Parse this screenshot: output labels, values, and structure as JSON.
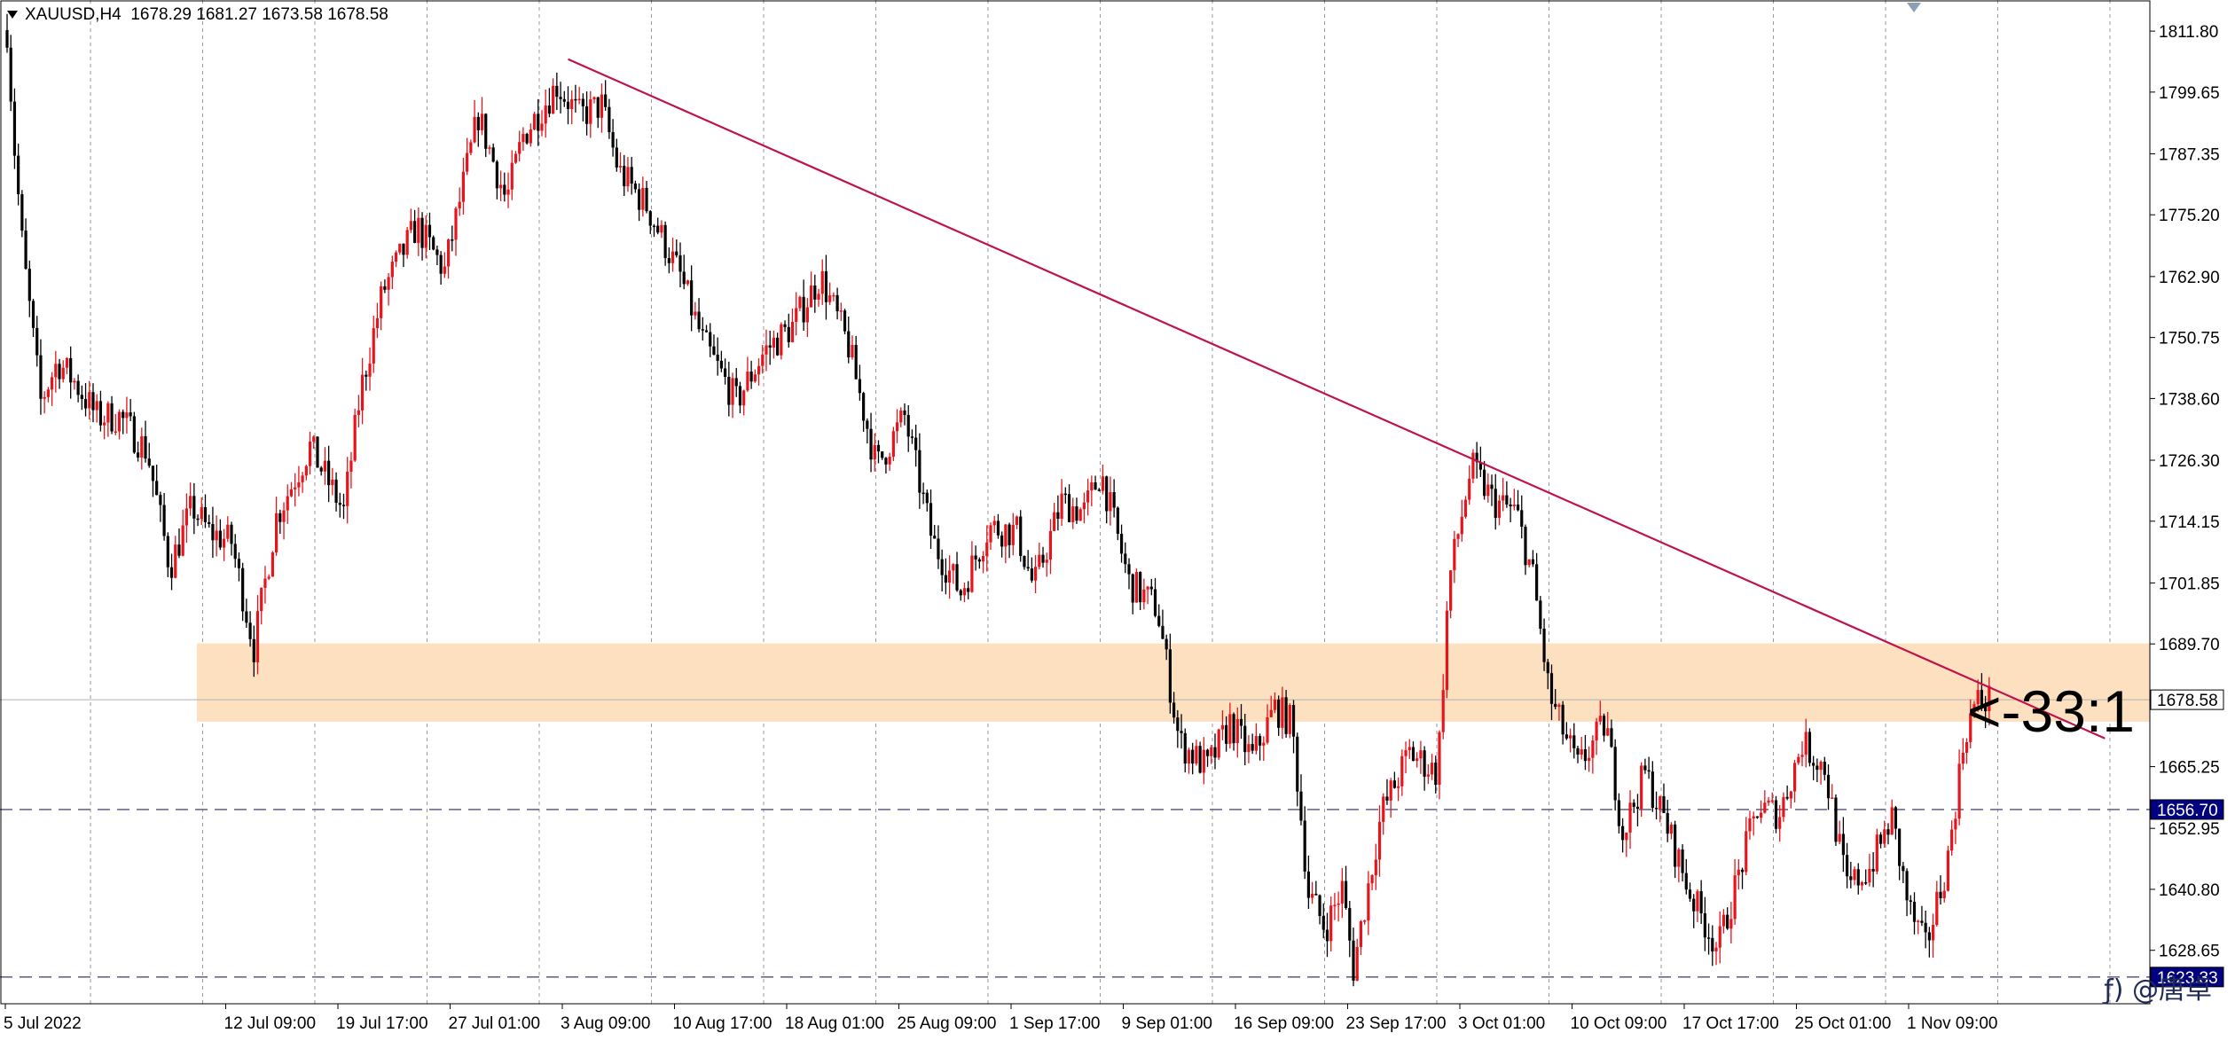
{
  "header": {
    "symbol": "XAUUSD,H4",
    "ohlc": "1678.29 1681.27 1673.58 1678.58"
  },
  "annotation_text": "<-33:1",
  "watermark": "ƒ) @唐卓",
  "colors": {
    "background": "#ffffff",
    "grid": "#9a9a9a",
    "bull_candle": "#e8141c",
    "bear_candle": "#000000",
    "trendline": "#c0134d",
    "zone_fill": "#fde0c0",
    "level_line": "#6a6a8c",
    "price_tag_bg": "#000080"
  },
  "price_axis": {
    "ticks": [
      "1811.80",
      "1799.65",
      "1787.35",
      "1775.20",
      "1762.90",
      "1750.75",
      "1738.60",
      "1726.30",
      "1714.15",
      "1701.85",
      "1689.70",
      "1665.25",
      "1652.95",
      "1640.80",
      "1628.65"
    ],
    "current_price": "1678.58",
    "level_tags": [
      "1656.70",
      "1623.33"
    ]
  },
  "time_axis": {
    "labels": [
      "5 Jul 2022",
      "12 Jul 09:00",
      "19 Jul 17:00",
      "27 Jul 01:00",
      "3 Aug 09:00",
      "10 Aug 17:00",
      "18 Aug 01:00",
      "25 Aug 09:00",
      "1 Sep 17:00",
      "9 Sep 01:00",
      "16 Sep 09:00",
      "23 Sep 17:00",
      "3 Oct 01:00",
      "10 Oct 09:00",
      "17 Oct 17:00",
      "25 Oct 01:00",
      "1 Nov 09:00"
    ]
  },
  "chart_data": {
    "type": "candlestick",
    "symbol": "XAUUSD",
    "timeframe": "H4",
    "price_range": [
      1618,
      1818
    ],
    "grid": true,
    "x_anchors": [
      "5 Jul 2022",
      "12 Jul 09:00",
      "19 Jul 17:00",
      "27 Jul 01:00",
      "3 Aug 09:00",
      "10 Aug 17:00",
      "18 Aug 01:00",
      "25 Aug 09:00",
      "1 Sep 17:00",
      "9 Sep 01:00",
      "16 Sep 09:00",
      "23 Sep 17:00",
      "3 Oct 01:00",
      "10 Oct 09:00",
      "17 Oct 17:00",
      "25 Oct 01:00",
      "1 Nov 09:00"
    ],
    "price_path": [
      [
        0,
        1812
      ],
      [
        0.06,
        1790
      ],
      [
        0.14,
        1768
      ],
      [
        0.3,
        1738
      ],
      [
        0.45,
        1746
      ],
      [
        0.6,
        1742
      ],
      [
        0.8,
        1735
      ],
      [
        1.0,
        1735
      ],
      [
        1.25,
        1728
      ],
      [
        1.45,
        1705
      ],
      [
        1.65,
        1717
      ],
      [
        1.8,
        1712
      ],
      [
        2.0,
        1710
      ],
      [
        2.2,
        1689
      ],
      [
        2.4,
        1715
      ],
      [
        2.7,
        1729
      ],
      [
        3.0,
        1716
      ],
      [
        3.15,
        1740
      ],
      [
        3.35,
        1760
      ],
      [
        3.65,
        1773
      ],
      [
        3.9,
        1764
      ],
      [
        4.2,
        1795
      ],
      [
        4.45,
        1778
      ],
      [
        4.6,
        1791
      ],
      [
        4.9,
        1801
      ],
      [
        5.1,
        1795
      ],
      [
        5.3,
        1797
      ],
      [
        5.45,
        1784
      ],
      [
        5.7,
        1777
      ],
      [
        6.0,
        1763
      ],
      [
        6.2,
        1750
      ],
      [
        6.5,
        1738
      ],
      [
        6.75,
        1748
      ],
      [
        7.0,
        1753
      ],
      [
        7.25,
        1763
      ],
      [
        7.5,
        1749
      ],
      [
        7.75,
        1725
      ],
      [
        8.0,
        1735
      ],
      [
        8.25,
        1710
      ],
      [
        8.5,
        1700
      ],
      [
        8.75,
        1713
      ],
      [
        9.0,
        1712
      ],
      [
        9.15,
        1701
      ],
      [
        9.4,
        1718
      ],
      [
        9.6,
        1716
      ],
      [
        9.75,
        1724
      ],
      [
        10.0,
        1702
      ],
      [
        10.25,
        1697
      ],
      [
        10.45,
        1670
      ],
      [
        10.7,
        1665
      ],
      [
        10.9,
        1674
      ],
      [
        11.1,
        1667
      ],
      [
        11.3,
        1677
      ],
      [
        11.45,
        1674
      ],
      [
        11.6,
        1640
      ],
      [
        11.75,
        1633
      ],
      [
        11.9,
        1641
      ],
      [
        12.0,
        1625
      ],
      [
        12.25,
        1656
      ],
      [
        12.5,
        1668
      ],
      [
        12.75,
        1664
      ],
      [
        12.85,
        1702
      ],
      [
        13.05,
        1725
      ],
      [
        13.25,
        1718
      ],
      [
        13.45,
        1716
      ],
      [
        13.6,
        1703
      ],
      [
        13.75,
        1679
      ],
      [
        14.0,
        1665
      ],
      [
        14.25,
        1674
      ],
      [
        14.4,
        1652
      ],
      [
        14.6,
        1664
      ],
      [
        14.8,
        1653
      ],
      [
        15.0,
        1640
      ],
      [
        15.25,
        1629
      ],
      [
        15.45,
        1645
      ],
      [
        15.6,
        1657
      ],
      [
        15.8,
        1656
      ],
      [
        16.0,
        1670
      ],
      [
        16.2,
        1665
      ],
      [
        16.4,
        1641
      ],
      [
        16.6,
        1645
      ],
      [
        16.8,
        1655
      ],
      [
        16.95,
        1637
      ],
      [
        17.1,
        1629
      ],
      [
        17.3,
        1647
      ],
      [
        17.45,
        1672
      ],
      [
        17.55,
        1678
      ],
      [
        17.65,
        1678.6
      ]
    ],
    "horizontal_levels": [
      1656.7,
      1623.33
    ],
    "current_price": 1678.58,
    "resistance_zone": [
      1674.2,
      1689.8
    ],
    "trendline": {
      "from": {
        "x": 5.0,
        "price": 1806.2
      },
      "to": {
        "x": 17.75,
        "price": 1674.4
      }
    },
    "annotation": "<-33:1"
  }
}
